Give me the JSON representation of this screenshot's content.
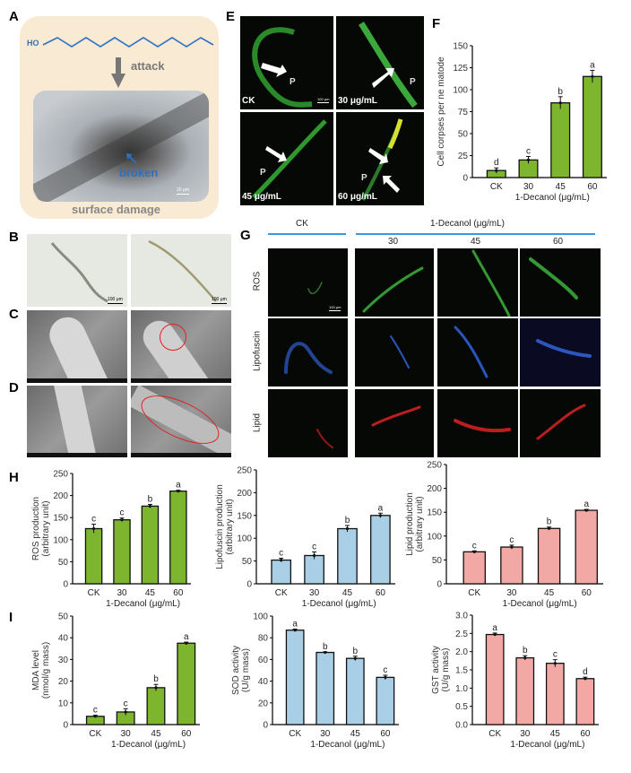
{
  "panels": {
    "A": {
      "label": "A",
      "ho": "HO",
      "attack": "attack",
      "broken": "broken",
      "scale": "20 μm",
      "caption": "surface damage"
    },
    "B": {
      "label": "B",
      "scale_left": "100 μm",
      "scale_right": "100 μm"
    },
    "C": {
      "label": "C"
    },
    "D": {
      "label": "D"
    },
    "E": {
      "label": "E",
      "images": [
        {
          "caption": "CK",
          "p": "P",
          "scale": "100 μm"
        },
        {
          "caption": "30 μg/mL",
          "p": "P"
        },
        {
          "caption": "45 μg/mL",
          "p": "P"
        },
        {
          "caption": "60 μg/mL",
          "p": "P"
        }
      ]
    },
    "F": {
      "label": "F"
    },
    "G": {
      "label": "G",
      "ck_header": "CK",
      "decanol_header": "1-Decanol (μg/mL)",
      "columns": [
        "30",
        "45",
        "60"
      ],
      "rows": [
        "ROS",
        "Lipofuscin",
        "Lipid"
      ],
      "scale": "100 μm"
    },
    "H": {
      "label": "H"
    },
    "I": {
      "label": "I"
    }
  },
  "colors": {
    "green": "#7db52f",
    "blue": "#a9cfe6",
    "pink": "#f2a9a6",
    "header_line": "#3a9ad9",
    "broken": "#2f6fc0"
  },
  "chart_data": [
    {
      "id": "F",
      "type": "bar",
      "categories": [
        "CK",
        "30",
        "45",
        "60"
      ],
      "values": [
        8,
        20,
        85,
        115
      ],
      "errors": [
        3,
        4,
        7,
        7
      ],
      "letters": [
        "d",
        "c",
        "b",
        "a"
      ],
      "ylabel": "Cell corpses per ne matode",
      "xlabel": "1-Decanol (μg/mL)",
      "ylim": [
        0,
        150
      ],
      "yticks": [
        "0",
        "25",
        "50",
        "75",
        "100",
        "125",
        "150"
      ],
      "color": "green"
    },
    {
      "id": "H1",
      "type": "bar",
      "categories": [
        "CK",
        "30",
        "45",
        "60"
      ],
      "values": [
        125,
        145,
        176,
        210
      ],
      "errors": [
        10,
        4,
        4,
        2
      ],
      "letters": [
        "c",
        "c",
        "b",
        "a"
      ],
      "ylabel": "ROS production",
      "ylabel2": "(arbitrary unit)",
      "xlabel": "1-Decanol (μg/mL)",
      "ylim": [
        0,
        250
      ],
      "yticks": [
        "0",
        "50",
        "100",
        "150",
        "200",
        "250"
      ],
      "color": "green"
    },
    {
      "id": "H2",
      "type": "bar",
      "categories": [
        "CK",
        "30",
        "45",
        "60"
      ],
      "values": [
        52,
        62,
        121,
        150
      ],
      "errors": [
        4,
        8,
        7,
        5
      ],
      "letters": [
        "c",
        "c",
        "b",
        "a"
      ],
      "ylabel": "Lipofuscin production",
      "ylabel2": "(arbitrary unit)",
      "xlabel": "1-Decanol (μg/mL)",
      "ylim": [
        0,
        250
      ],
      "yticks": [
        "0",
        "50",
        "100",
        "150",
        "200",
        "250"
      ],
      "color": "blue"
    },
    {
      "id": "H3",
      "type": "bar",
      "categories": [
        "CK",
        "30",
        "45",
        "60"
      ],
      "values": [
        67,
        77,
        116,
        154
      ],
      "errors": [
        2,
        4,
        3,
        2
      ],
      "letters": [
        "c",
        "c",
        "b",
        "a"
      ],
      "ylabel": "Lipid production",
      "ylabel2": "(arbitrary unit)",
      "xlabel": "1-Decanol (μg/mL)",
      "ylim": [
        0,
        250
      ],
      "yticks": [
        "0",
        "50",
        "100",
        "150",
        "200",
        "250"
      ],
      "color": "pink"
    },
    {
      "id": "I1",
      "type": "bar",
      "categories": [
        "CK",
        "30",
        "45",
        "60"
      ],
      "values": [
        3.8,
        5.8,
        17,
        37.5
      ],
      "errors": [
        0.5,
        1.5,
        1.5,
        0.5
      ],
      "letters": [
        "c",
        "c",
        "b",
        "a"
      ],
      "ylabel": "MDA level",
      "ylabel2": "(nmol/g mass)",
      "xlabel": "1-Decanol (μg/mL)",
      "ylim": [
        0,
        50
      ],
      "yticks": [
        "0",
        "10",
        "20",
        "30",
        "40",
        "50"
      ],
      "color": "green"
    },
    {
      "id": "I2",
      "type": "bar",
      "categories": [
        "CK",
        "30",
        "45",
        "60"
      ],
      "values": [
        87,
        66.5,
        61,
        43.5
      ],
      "errors": [
        1,
        0.5,
        2,
        2
      ],
      "letters": [
        "a",
        "b",
        "b",
        "c"
      ],
      "ylabel": "SOD activity",
      "ylabel2": "(U/g mass)",
      "xlabel": "1-Decanol (μg/mL)",
      "ylim": [
        0,
        100
      ],
      "yticks": [
        "0",
        "20",
        "40",
        "60",
        "80",
        "100"
      ],
      "color": "blue"
    },
    {
      "id": "I3",
      "type": "bar",
      "categories": [
        "CK",
        "30",
        "45",
        "60"
      ],
      "values": [
        2.47,
        1.83,
        1.68,
        1.26
      ],
      "errors": [
        0.04,
        0.06,
        0.1,
        0.04
      ],
      "letters": [
        "a",
        "b",
        "c",
        "d"
      ],
      "ylabel": "GST activity",
      "ylabel2": "(U/g mass)",
      "xlabel": "1-Decanol (μg/mL)",
      "ylim": [
        0,
        3
      ],
      "yticks": [
        "0.0",
        "0.5",
        "1.0",
        "1.5",
        "2.0",
        "2.5",
        "3.0"
      ],
      "color": "pink"
    }
  ]
}
